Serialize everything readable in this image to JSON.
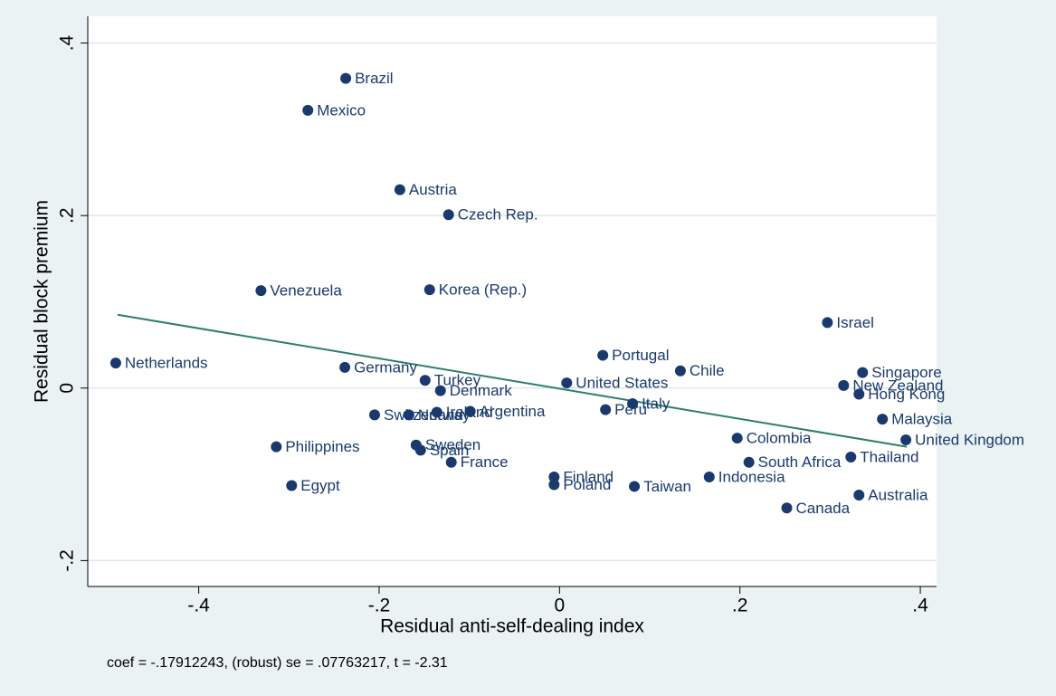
{
  "chart_data": {
    "type": "scatter",
    "xlabel": "Residual anti-self-dealing index",
    "ylabel": "Residual block premium",
    "note": "coef = -.17912243, (robust) se = .07763217, t = -2.31",
    "labels": [
      "Brazil",
      "Mexico",
      "Austria",
      "Czech Rep.",
      "Venezuela",
      "Korea (Rep.)",
      "Israel",
      "Netherlands",
      "Germany",
      "Portugal",
      "Chile",
      "Singapore",
      "Turkey",
      "United States",
      "New Zealand",
      "Denmark",
      "Hong Kong",
      "Italy",
      "Peru",
      "Argentina",
      "Ireland",
      "Norway",
      "Switzerland",
      "Malaysia",
      "Colombia",
      "United Kingdom",
      "Philippines",
      "Sweden",
      "Spain",
      "Thailand",
      "France",
      "South Africa",
      "Finland",
      "Indonesia",
      "Poland",
      "Egypt",
      "Taiwan",
      "Australia",
      "Canada"
    ],
    "x": [
      -0.237,
      -0.279,
      -0.177,
      -0.123,
      -0.331,
      -0.144,
      0.297,
      -0.492,
      -0.238,
      0.048,
      0.134,
      0.336,
      -0.149,
      0.008,
      0.315,
      -0.132,
      0.332,
      0.081,
      0.051,
      -0.099,
      -0.136,
      -0.167,
      -0.205,
      0.358,
      0.197,
      0.384,
      -0.314,
      -0.159,
      -0.154,
      0.323,
      -0.12,
      0.21,
      -0.006,
      0.166,
      -0.006,
      -0.297,
      0.083,
      0.332,
      0.252
    ],
    "y": [
      0.359,
      0.322,
      0.23,
      0.201,
      0.113,
      0.114,
      0.076,
      0.029,
      0.024,
      0.038,
      0.02,
      0.018,
      0.009,
      0.006,
      0.003,
      -0.003,
      -0.007,
      -0.018,
      -0.025,
      -0.027,
      -0.028,
      -0.031,
      -0.031,
      -0.036,
      -0.058,
      -0.06,
      -0.068,
      -0.066,
      -0.072,
      -0.08,
      -0.086,
      -0.086,
      -0.103,
      -0.103,
      -0.112,
      -0.113,
      -0.114,
      -0.124,
      -0.139
    ],
    "color": "#1a3a6e",
    "fit_line": {
      "x": [
        -0.49,
        0.385
      ],
      "y": [
        0.085,
        -0.068
      ],
      "color": "#2e7d6b"
    },
    "xlim": [
      -0.523,
      0.418
    ],
    "ylim": [
      -0.23,
      0.431
    ],
    "xticks": [
      {
        "value": -0.4,
        "label": "-.4"
      },
      {
        "value": -0.2,
        "label": "-.2"
      },
      0,
      {
        "value": 0.2,
        "label": ".2"
      },
      {
        "value": 0.4,
        "label": ".4"
      }
    ],
    "yticks": [
      {
        "value": -0.2,
        "label": "-.2"
      },
      0,
      {
        "value": 0.2,
        "label": ".2"
      },
      {
        "value": 0.4,
        "label": ".4"
      }
    ],
    "grid": true
  }
}
